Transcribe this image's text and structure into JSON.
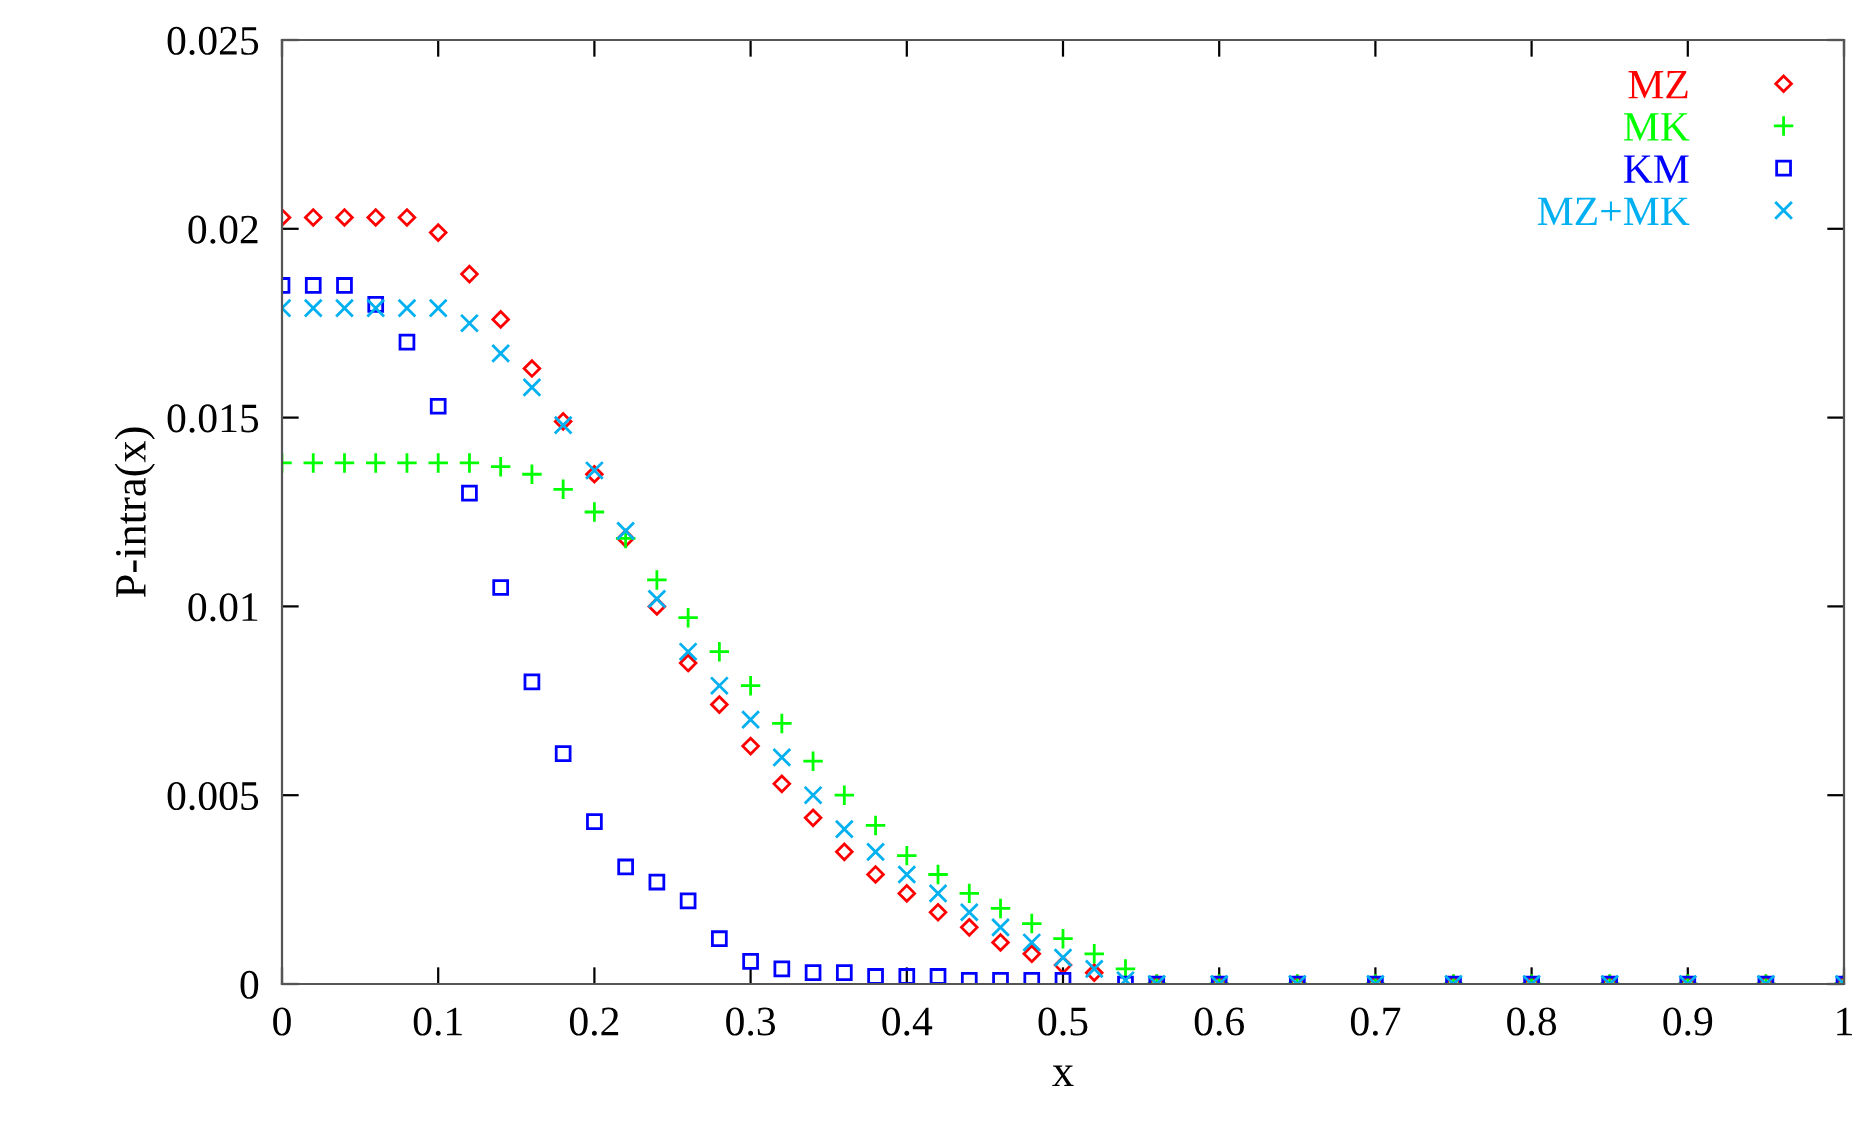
{
  "chart_data": {
    "type": "scatter",
    "xlabel": "x",
    "ylabel": "P-intra(x)",
    "x": [
      0,
      0.02,
      0.04,
      0.06,
      0.08,
      0.1,
      0.12,
      0.14,
      0.16,
      0.18,
      0.2,
      0.22,
      0.24,
      0.26,
      0.28,
      0.3,
      0.32,
      0.34,
      0.36,
      0.38,
      0.4,
      0.42,
      0.44,
      0.46,
      0.48,
      0.5,
      0.52,
      0.54,
      0.56,
      0.6,
      0.65,
      0.7,
      0.75,
      0.8,
      0.85,
      0.9,
      0.95,
      1.0
    ],
    "xlim": [
      0,
      1
    ],
    "xticks": [
      0,
      0.1,
      0.2,
      0.3,
      0.4,
      0.5,
      0.6,
      0.7,
      0.8,
      0.9,
      1
    ],
    "ylim": [
      0,
      0.025
    ],
    "yticks": [
      0,
      0.005,
      0.01,
      0.015,
      0.02,
      0.025
    ],
    "grid": false,
    "legend": "top right",
    "series": [
      {
        "name": "MZ",
        "color": "#ff0000",
        "marker": "diamond",
        "values": [
          0.0203,
          0.0203,
          0.0203,
          0.0203,
          0.0203,
          0.0199,
          0.0188,
          0.0176,
          0.0163,
          0.0149,
          0.0135,
          0.0118,
          0.01,
          0.0085,
          0.0074,
          0.0063,
          0.0053,
          0.0044,
          0.0035,
          0.0029,
          0.0024,
          0.0019,
          0.0015,
          0.0011,
          0.0008,
          0.0005,
          0.0003,
          null,
          0,
          0,
          0,
          0,
          0,
          0,
          0,
          0,
          0,
          0
        ]
      },
      {
        "name": "MK",
        "color": "#00ff00",
        "marker": "plus",
        "values": [
          0.0138,
          0.0138,
          0.0138,
          0.0138,
          0.0138,
          0.0138,
          0.0138,
          0.0137,
          0.0135,
          0.0131,
          0.0125,
          0.0118,
          0.0107,
          0.0097,
          0.0088,
          0.0079,
          0.0069,
          0.0059,
          0.005,
          0.0042,
          0.0034,
          0.0029,
          0.0024,
          0.002,
          0.0016,
          0.0012,
          0.0008,
          0.0004,
          0,
          0,
          0,
          0,
          0,
          0,
          0,
          0,
          0,
          0
        ]
      },
      {
        "name": "KM",
        "color": "#0000ff",
        "marker": "square",
        "values": [
          0.0185,
          0.0185,
          0.0185,
          0.018,
          0.017,
          0.0153,
          0.013,
          0.0105,
          0.008,
          0.0061,
          0.0043,
          0.0031,
          0.0027,
          0.0022,
          0.0012,
          0.0006,
          0.0004,
          0.0003,
          0.0003,
          0.0002,
          0.0002,
          0.0002,
          0.0001,
          0.0001,
          0.0001,
          0.0001,
          null,
          0,
          0,
          0,
          0,
          0,
          0,
          0,
          0,
          0,
          0,
          0
        ]
      },
      {
        "name": "MZ+MK",
        "color": "#00b0f0",
        "marker": "cross",
        "values": [
          0.0179,
          0.0179,
          0.0179,
          0.0179,
          0.0179,
          0.0179,
          0.0175,
          0.0167,
          0.0158,
          0.0148,
          0.0136,
          0.012,
          0.0102,
          0.0088,
          0.0079,
          0.007,
          0.006,
          0.005,
          0.0041,
          0.0035,
          0.0029,
          0.0024,
          0.0019,
          0.0015,
          0.0011,
          0.0007,
          0.0004,
          0.0001,
          0,
          0,
          0,
          0,
          0,
          0,
          0,
          0,
          0,
          0
        ]
      }
    ]
  }
}
